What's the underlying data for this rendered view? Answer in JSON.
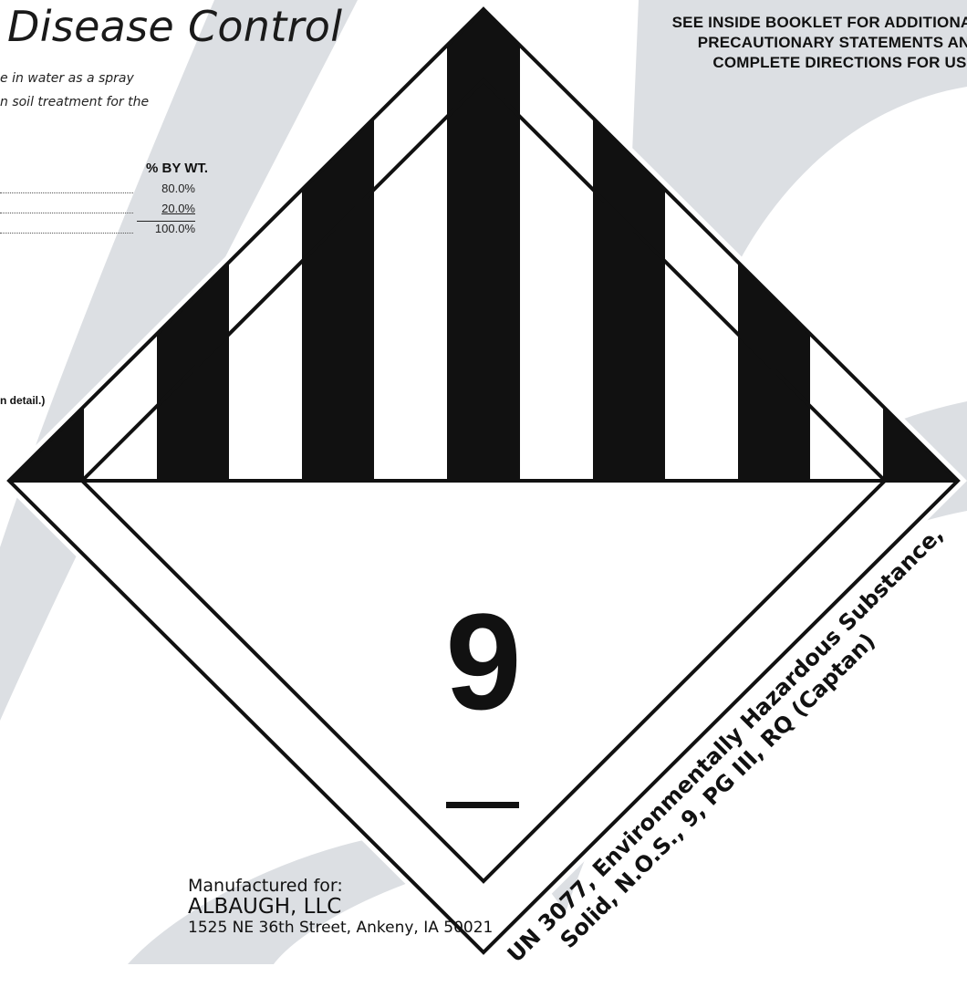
{
  "header": {
    "title": "Disease Control",
    "description_line1": "e in water as a spray",
    "description_line2": "n soil treatment for the"
  },
  "composition": {
    "column_header": "% BY WT.",
    "rows": [
      {
        "value": "80.0%"
      },
      {
        "value": "20.0%"
      },
      {
        "value": "100.0%"
      }
    ]
  },
  "detail_note": "n detail.)",
  "warning": {
    "line1": "SEE INSIDE BOOKLET FOR ADDITIONAL",
    "line2": "PRECAUTIONARY STATEMENTS AND",
    "line3": "COMPLETE DIRECTIONS FOR USE."
  },
  "hazard_placard": {
    "class_number": "9",
    "shipping_line1": "UN 3077, Environmentally Hazardous Substance,",
    "shipping_line2": "Solid, N.O.S., 9, PG III, RQ (Captan)"
  },
  "manufacturer": {
    "label": "Manufactured for:",
    "company": "ALBAUGH, LLC",
    "address": "1525 NE 36th Street, Ankeny, IA 50021"
  },
  "colors": {
    "background_swoosh": "#dcdfe3",
    "placard_black": "#111111"
  }
}
